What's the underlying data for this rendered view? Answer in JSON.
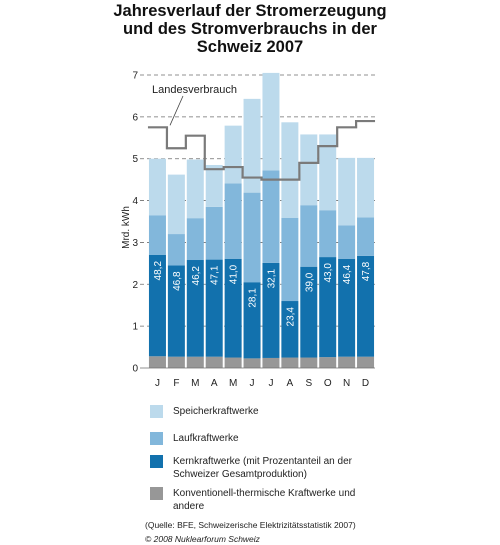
{
  "title_lines": [
    "Jahresverlauf der Stromerzeugung",
    "und des Stromverbrauchs in der",
    "Schweiz 2007"
  ],
  "chart_data": {
    "type": "bar",
    "stacked": true,
    "categories": [
      "J",
      "F",
      "M",
      "A",
      "M",
      "J",
      "J",
      "A",
      "S",
      "O",
      "N",
      "D"
    ],
    "ylabel": "Mrd. kWh",
    "ylim": [
      0,
      7
    ],
    "yticks": [
      "0",
      "1",
      "2",
      "3",
      "4",
      "5",
      "6",
      "7"
    ],
    "grid": true,
    "series": [
      {
        "name": "Konventionell-thermische Kraftwerke und andere",
        "color": "#979797",
        "values": [
          0.28,
          0.27,
          0.27,
          0.27,
          0.25,
          0.23,
          0.24,
          0.25,
          0.25,
          0.26,
          0.27,
          0.27
        ]
      },
      {
        "name": "Kernkraftwerke (mit Prozentanteil an der Schweizer Gesamtproduktion)",
        "color": "#1271ad",
        "values": [
          2.42,
          2.18,
          2.31,
          2.32,
          2.36,
          1.82,
          2.27,
          1.35,
          2.17,
          2.39,
          2.34,
          2.41
        ]
      },
      {
        "name": "Laufkraftwerke",
        "color": "#82b7db",
        "values": [
          0.95,
          0.75,
          1.0,
          1.26,
          1.8,
          2.14,
          2.21,
          1.99,
          1.47,
          1.12,
          0.8,
          0.92
        ]
      },
      {
        "name": "Speicherkraftwerke",
        "color": "#bcdaec",
        "values": [
          1.35,
          1.42,
          1.4,
          1.0,
          1.38,
          2.24,
          2.33,
          2.28,
          1.69,
          1.81,
          1.61,
          1.42
        ]
      }
    ],
    "nuclear_share_labels": [
      "48,2",
      "46,8",
      "46,2",
      "47,1",
      "41,0",
      "28,1",
      "32,1",
      "23,4",
      "39,0",
      "43,0",
      "46,4",
      "47,8"
    ],
    "line_series": {
      "name": "Landesverbrauch",
      "color": "#7a7a7a",
      "values": [
        5.75,
        5.25,
        5.55,
        4.75,
        4.8,
        4.55,
        4.5,
        4.5,
        4.9,
        5.3,
        5.75,
        5.9
      ]
    }
  },
  "legend": [
    {
      "label": "Speicherkraftwerke",
      "color": "#bcdaec"
    },
    {
      "label": "Laufkraftwerke",
      "color": "#82b7db"
    },
    {
      "label": "Kernkraftwerke (mit Prozentanteil an der Schweizer Gesamtproduktion)",
      "color": "#1271ad"
    },
    {
      "label": "Konventionell-thermische Kraftwerke und andere",
      "color": "#979797"
    }
  ],
  "footer": {
    "source": "(Quelle: BFE, Schweizerische Elektrizitätsstatistik 2007)",
    "copyright": "© 2008 Nuklearforum Schweiz"
  }
}
